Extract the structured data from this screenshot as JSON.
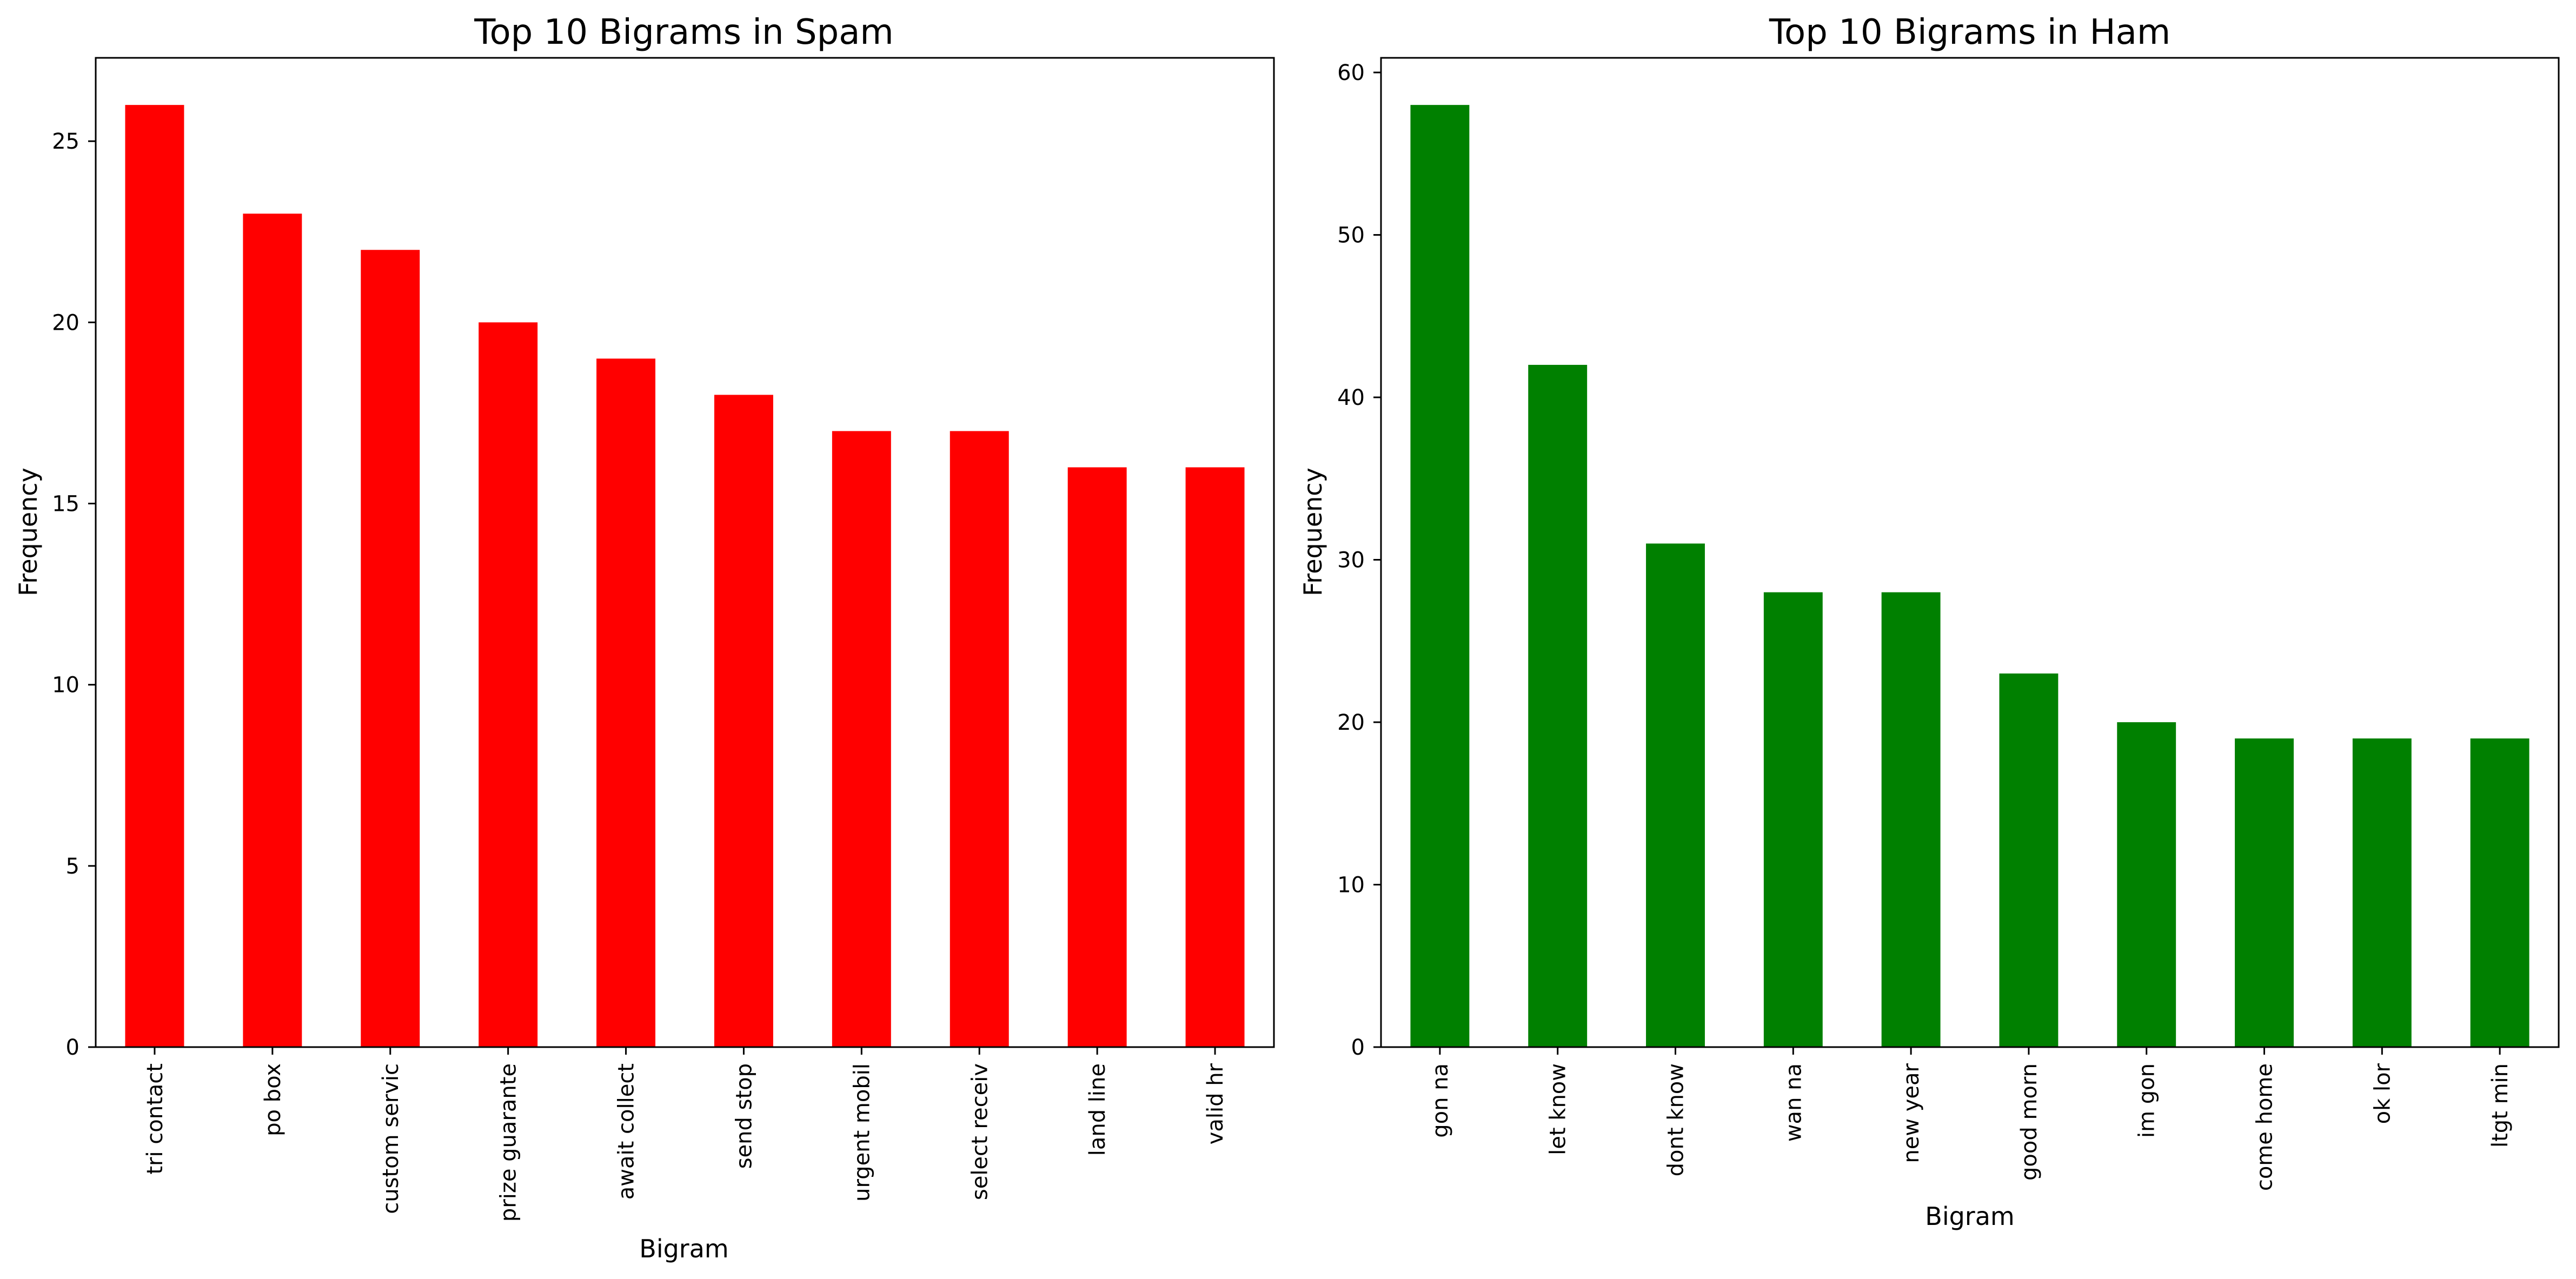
{
  "chart_data": [
    {
      "type": "bar",
      "title": "Top 10 Bigrams in Spam",
      "xlabel": "Bigram",
      "ylabel": "Frequency",
      "categories": [
        "tri contact",
        "po box",
        "custom servic",
        "prize guarante",
        "await collect",
        "send stop",
        "urgent mobil",
        "select receiv",
        "land line",
        "valid hr"
      ],
      "values": [
        26,
        23,
        22,
        20,
        19,
        18,
        17,
        17,
        16,
        16
      ],
      "ylim": [
        0,
        27.3
      ],
      "yticks": [
        0,
        5,
        10,
        15,
        20,
        25
      ],
      "color": "#ff0000",
      "grid": false,
      "legend": false
    },
    {
      "type": "bar",
      "title": "Top 10 Bigrams in Ham",
      "xlabel": "Bigram",
      "ylabel": "Frequency",
      "categories": [
        "gon na",
        "let know",
        "dont know",
        "wan na",
        "new year",
        "good morn",
        "im gon",
        "come home",
        "ok lor",
        "ltgt min"
      ],
      "values": [
        58,
        42,
        31,
        28,
        28,
        23,
        20,
        19,
        19,
        19
      ],
      "ylim": [
        0,
        60.9
      ],
      "yticks": [
        0,
        10,
        20,
        30,
        40,
        50,
        60
      ],
      "color": "#008000",
      "grid": false,
      "legend": false
    }
  ]
}
